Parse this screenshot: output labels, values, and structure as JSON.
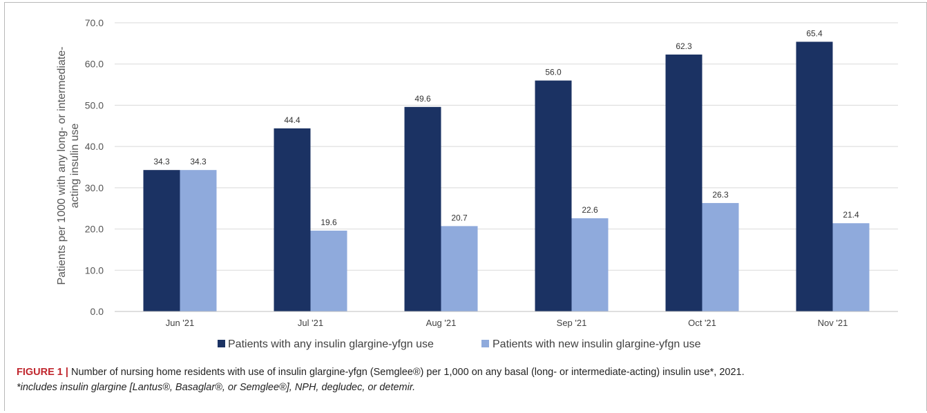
{
  "chart_data": {
    "type": "bar",
    "categories": [
      "Jun '21",
      "Jul '21",
      "Aug '21",
      "Sep '21",
      "Oct '21",
      "Nov '21"
    ],
    "series": [
      {
        "name": "Patients with any insulin glargine-yfgn use",
        "values": [
          34.3,
          44.4,
          49.6,
          56.0,
          62.3,
          65.4
        ],
        "color": "#1b3263"
      },
      {
        "name": "Patients with new insulin glargine-yfgn use",
        "values": [
          34.3,
          19.6,
          20.7,
          22.6,
          26.3,
          21.4
        ],
        "color": "#8faadc"
      }
    ],
    "data_labels": [
      [
        "34.3",
        "44.4",
        "49.6",
        "56.0",
        "62.3",
        "65.4"
      ],
      [
        "34.3",
        "19.6",
        "20.7",
        "22.6",
        "26.3",
        "21.4"
      ]
    ],
    "ylabel_lines": [
      "Patients per 1000 with any long- or intermediate-",
      "acting insulin use"
    ],
    "ylim": [
      0,
      70
    ],
    "yticks": [
      "0.0",
      "10.0",
      "20.0",
      "30.0",
      "40.0",
      "50.0",
      "60.0",
      "70.0"
    ],
    "grid": true,
    "legend_position": "bottom"
  },
  "caption": {
    "label": "FIGURE 1 |",
    "text": " Number of nursing home residents with use of insulin glargine-yfgn (Semglee®) per 1,000 on any basal (long- or intermediate-acting) insulin use*, 2021.",
    "note": "*includes insulin glargine [Lantus®, Basaglar®, or Semglee®], NPH, degludec, or detemir."
  }
}
